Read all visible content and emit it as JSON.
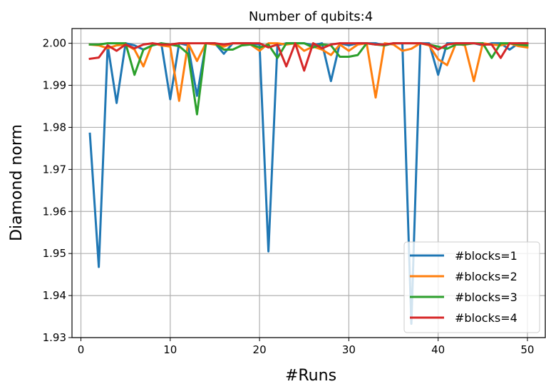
{
  "chart_data": {
    "type": "line",
    "title": "Number of qubits:4",
    "xlabel": "#Runs",
    "ylabel": "Diamond norm",
    "xlim": [
      -1,
      52
    ],
    "ylim": [
      1.93,
      2.0035
    ],
    "xticks": [
      0,
      10,
      20,
      30,
      40,
      50
    ],
    "yticks": [
      1.93,
      1.94,
      1.95,
      1.96,
      1.97,
      1.98,
      1.99,
      2.0
    ],
    "ytick_labels": [
      "1.93",
      "1.94",
      "1.95",
      "1.96",
      "1.97",
      "1.98",
      "1.99",
      "2.00"
    ],
    "grid": true,
    "legend_position": "lower-right",
    "x": [
      1,
      2,
      3,
      4,
      5,
      6,
      7,
      8,
      9,
      10,
      11,
      12,
      13,
      14,
      15,
      16,
      17,
      18,
      19,
      20,
      21,
      22,
      23,
      24,
      25,
      26,
      27,
      28,
      29,
      30,
      31,
      32,
      33,
      34,
      35,
      36,
      37,
      38,
      39,
      40,
      41,
      42,
      43,
      44,
      45,
      46,
      47,
      48,
      49,
      50
    ],
    "series": [
      {
        "name": "#blocks=1",
        "color": "#1f77b4",
        "values": [
          1.9785,
          1.9468,
          1.9995,
          1.9858,
          2.0,
          1.9995,
          1.9985,
          1.9995,
          2.0,
          1.9867,
          2.0,
          1.9995,
          1.9875,
          2.0,
          2.0,
          1.9975,
          2.0,
          2.0,
          2.0,
          1.9997,
          1.9505,
          1.9995,
          2.0,
          2.0,
          2.0,
          1.9995,
          2.0,
          1.991,
          2.0,
          1.9995,
          2.0,
          2.0,
          2.0,
          1.9995,
          2.0,
          2.0,
          1.9333,
          2.0,
          2.0,
          1.9925,
          2.0,
          2.0,
          2.0,
          2.0,
          1.9995,
          2.0,
          2.0,
          1.9985,
          2.0,
          2.0
        ]
      },
      {
        "name": "#blocks=2",
        "color": "#ff7f0e",
        "values": [
          1.9997,
          1.9995,
          1.9988,
          1.9995,
          1.9997,
          1.9985,
          1.9945,
          2.0,
          1.9995,
          1.9992,
          1.9863,
          2.0,
          1.9958,
          2.0,
          1.9997,
          1.9992,
          2.0,
          2.0,
          1.9997,
          1.9982,
          2.0,
          2.0,
          1.9997,
          2.0,
          1.9982,
          1.9992,
          1.9985,
          1.9972,
          1.9997,
          1.9982,
          1.9997,
          2.0,
          1.9871,
          2.0,
          1.9997,
          1.9982,
          1.9987,
          2.0,
          1.9995,
          1.9962,
          1.9948,
          2.0,
          1.9995,
          1.991,
          2.0,
          1.9997,
          1.9995,
          2.0,
          1.9993,
          1.999
        ]
      },
      {
        "name": "#blocks=3",
        "color": "#2ca02c",
        "values": [
          1.9997,
          1.9997,
          2.0,
          2.0,
          2.0,
          1.9925,
          1.9985,
          1.9995,
          2.0,
          1.9997,
          1.9993,
          1.9975,
          1.9831,
          2.0,
          2.0,
          1.9985,
          1.9985,
          1.9995,
          1.9997,
          1.999,
          1.9997,
          1.9965,
          2.0,
          2.0,
          2.0,
          1.999,
          1.9997,
          1.9995,
          1.9968,
          1.9968,
          1.9972,
          2.0,
          1.9997,
          1.9995,
          2.0,
          2.0,
          2.0,
          2.0,
          1.9997,
          1.9992,
          1.9987,
          1.9997,
          1.9997,
          2.0,
          2.0,
          1.9965,
          2.0,
          2.0,
          1.9997,
          1.9995
        ]
      },
      {
        "name": "#blocks=4",
        "color": "#d62728",
        "values": [
          1.9963,
          1.9966,
          1.9995,
          1.9982,
          1.9997,
          1.9988,
          1.9997,
          2.0,
          1.9997,
          1.9997,
          2.0,
          2.0,
          2.0,
          2.0,
          2.0,
          1.9997,
          2.0,
          2.0,
          2.0,
          2.0,
          1.999,
          1.9997,
          1.9945,
          2.0,
          1.9935,
          2.0,
          1.9988,
          1.9997,
          2.0,
          2.0,
          2.0,
          2.0,
          1.9997,
          1.9997,
          2.0,
          2.0,
          2.0,
          2.0,
          1.9997,
          1.9985,
          1.9997,
          2.0,
          2.0,
          2.0,
          1.9997,
          1.9997,
          1.9965,
          2.0,
          2.0,
          2.0
        ]
      }
    ]
  }
}
